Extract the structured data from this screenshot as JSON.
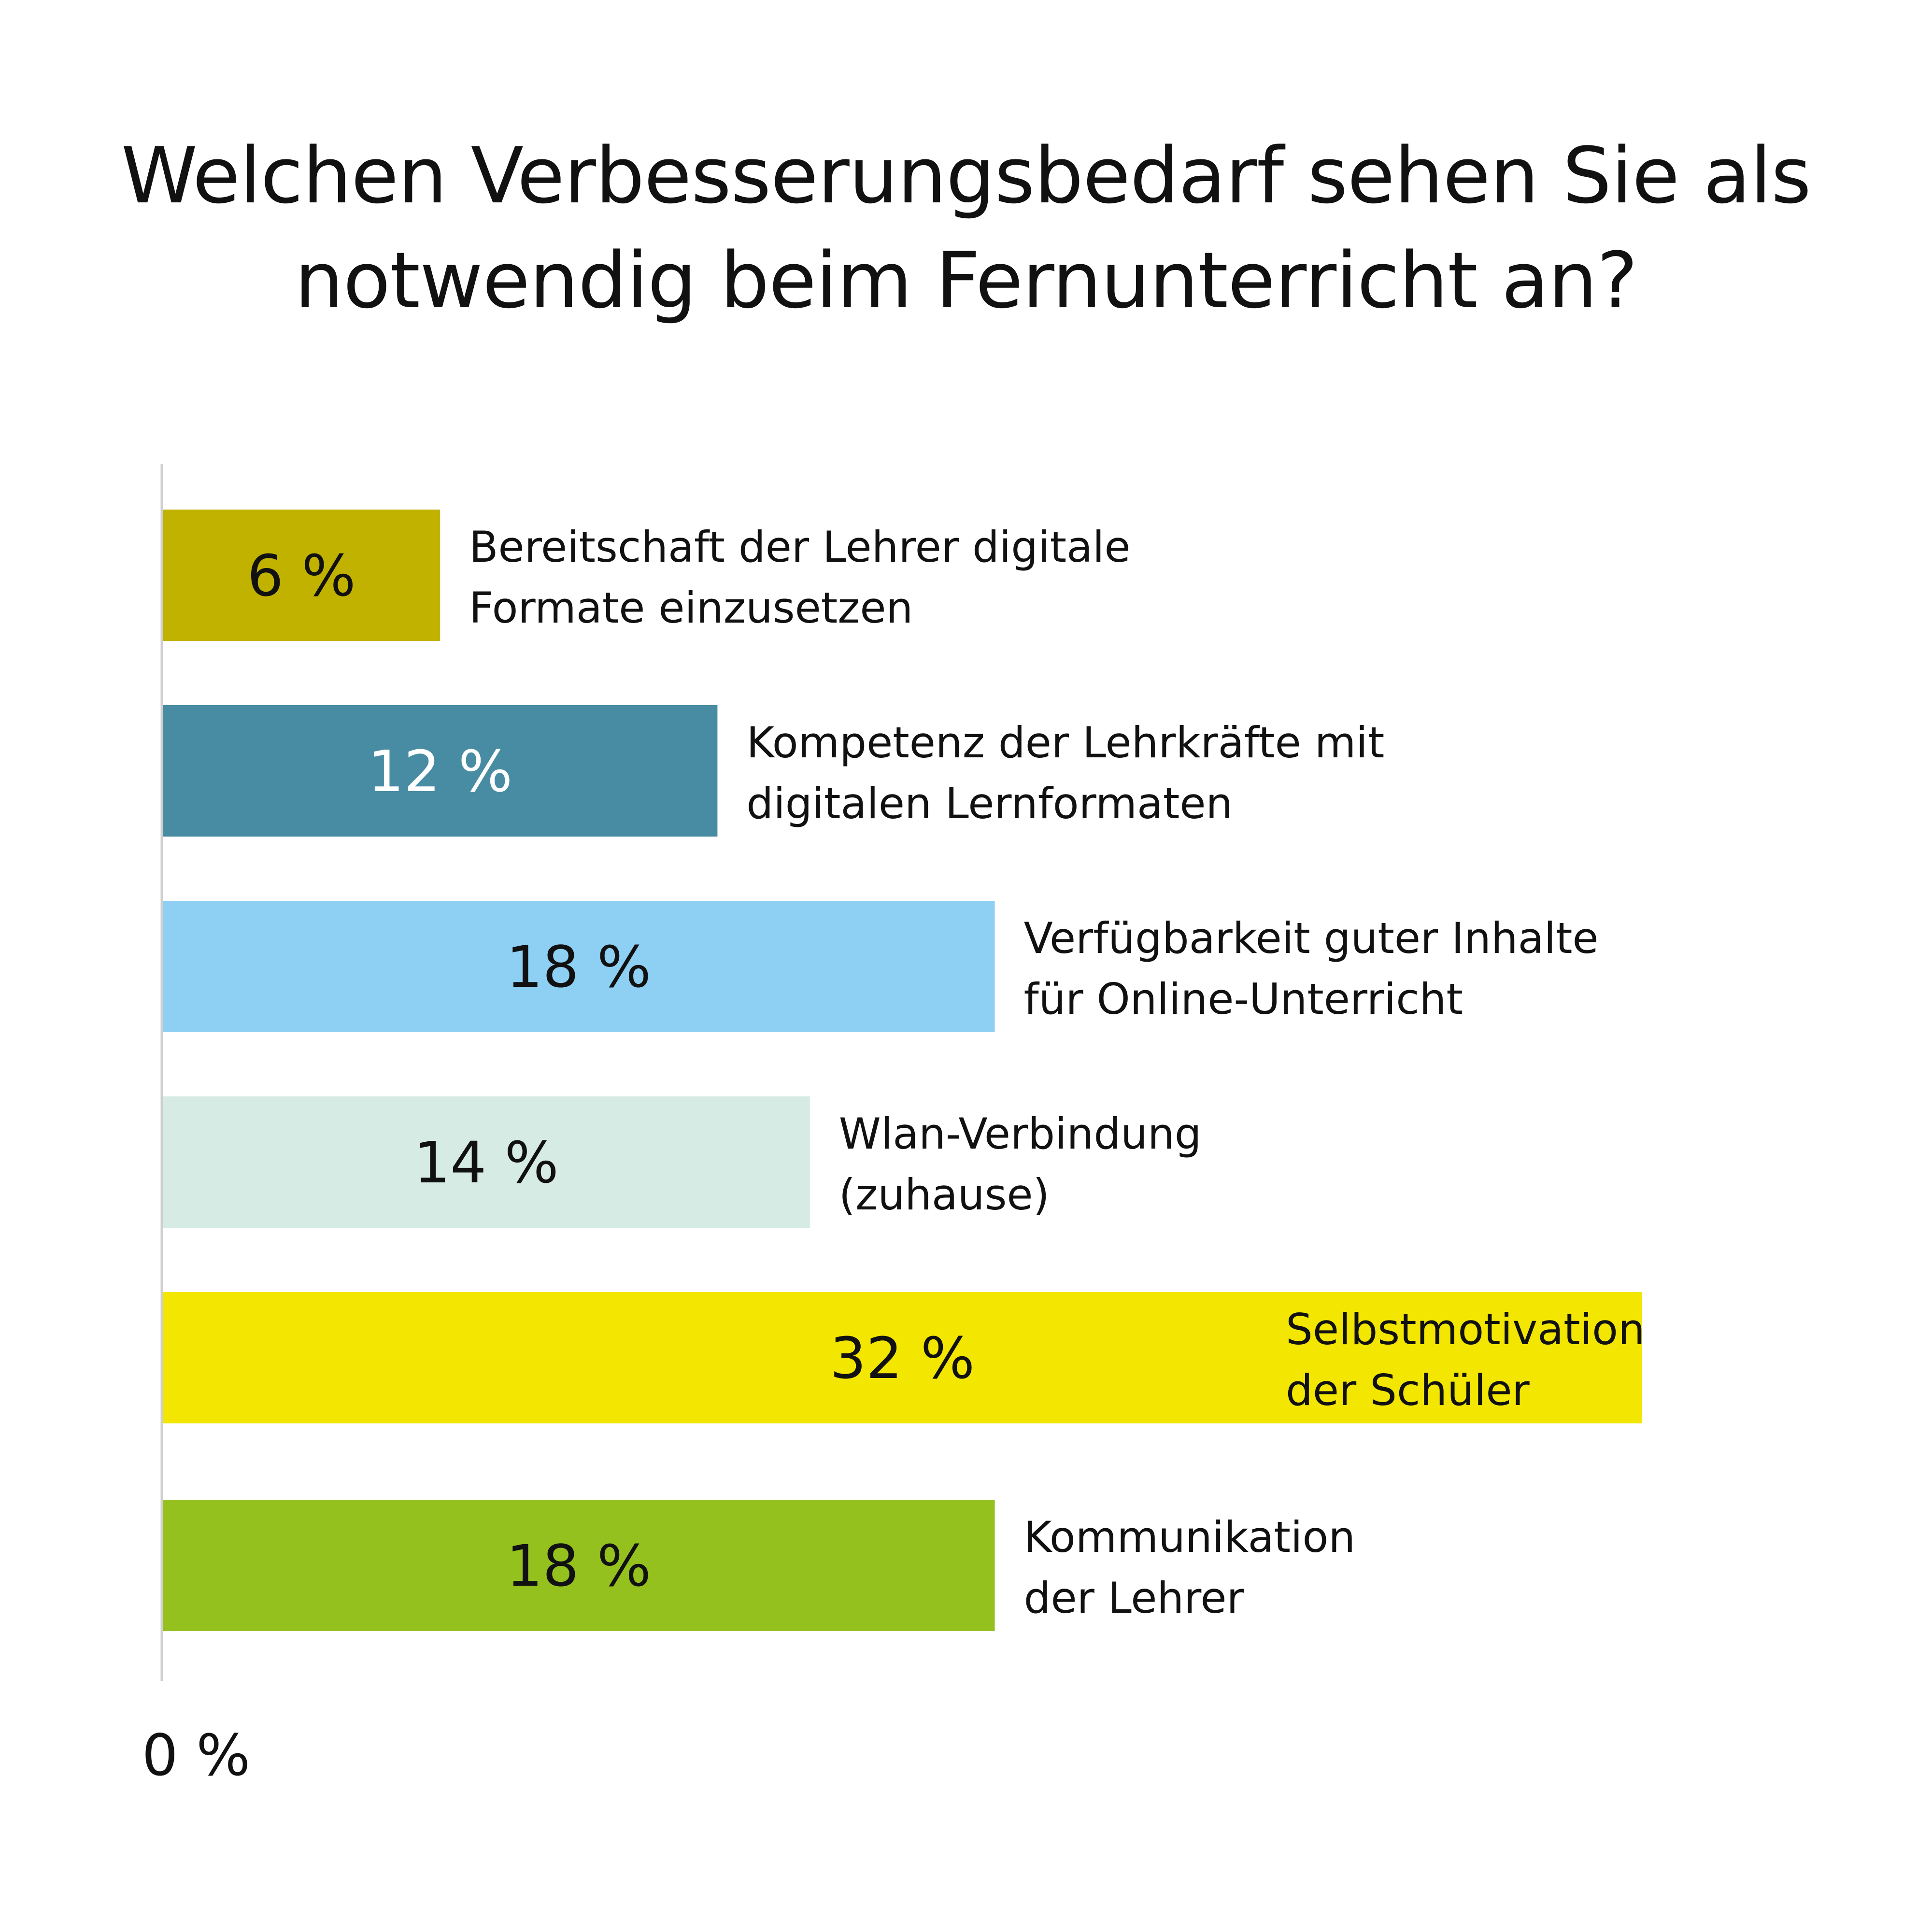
{
  "title_lines": [
    "Welchen Verbesserungsbedarf sehen Sie als",
    "notwendig beim Fernunterricht an?"
  ],
  "chart_data": {
    "type": "bar",
    "orientation": "horizontal",
    "title": "Welchen Verbesserungsbedarf sehen Sie als notwendig beim Fernunterricht an?",
    "xlabel": "",
    "ylabel": "",
    "x_tick_labels": [
      "0 %"
    ],
    "xlim": [
      0,
      32
    ],
    "grid": false,
    "legend": "none",
    "categories": [
      "Bereitschaft der Lehrer digitale Formate einzusetzen",
      "Kompetenz der Lehrkräfte mit digitalen Lernformaten",
      "Verfügbarkeit guter Inhalte für Online-Unterricht",
      "Wlan-Verbindung (zuhause)",
      "Selbstmotivation der Schüler",
      "Kommunikation der Lehrer"
    ],
    "category_label_lines": [
      [
        "Bereitschaft der Lehrer digitale",
        "Formate einzusetzen"
      ],
      [
        "Kompetenz der Lehrkräfte mit",
        "digitalen Lernformaten"
      ],
      [
        "Verfügbarkeit guter Inhalte",
        "für Online-Unterricht"
      ],
      [
        "Wlan-Verbindung",
        "(zuhause)"
      ],
      [
        "Selbstmotivation",
        "der Schüler"
      ],
      [
        "Kommunikation",
        "der Lehrer"
      ]
    ],
    "values": [
      6,
      12,
      18,
      14,
      32,
      18
    ],
    "value_labels": [
      "6 %",
      "12 %",
      "18 %",
      "14 %",
      "32 %",
      "18 %"
    ],
    "unit": "%",
    "colors": [
      "#c2b200",
      "#478ca2",
      "#8ecff4",
      "#d6ebe4",
      "#f3e600",
      "#95c11f"
    ],
    "value_label_colors": [
      "#111111",
      "#ffffff",
      "#111111",
      "#111111",
      "#111111",
      "#111111"
    ]
  }
}
